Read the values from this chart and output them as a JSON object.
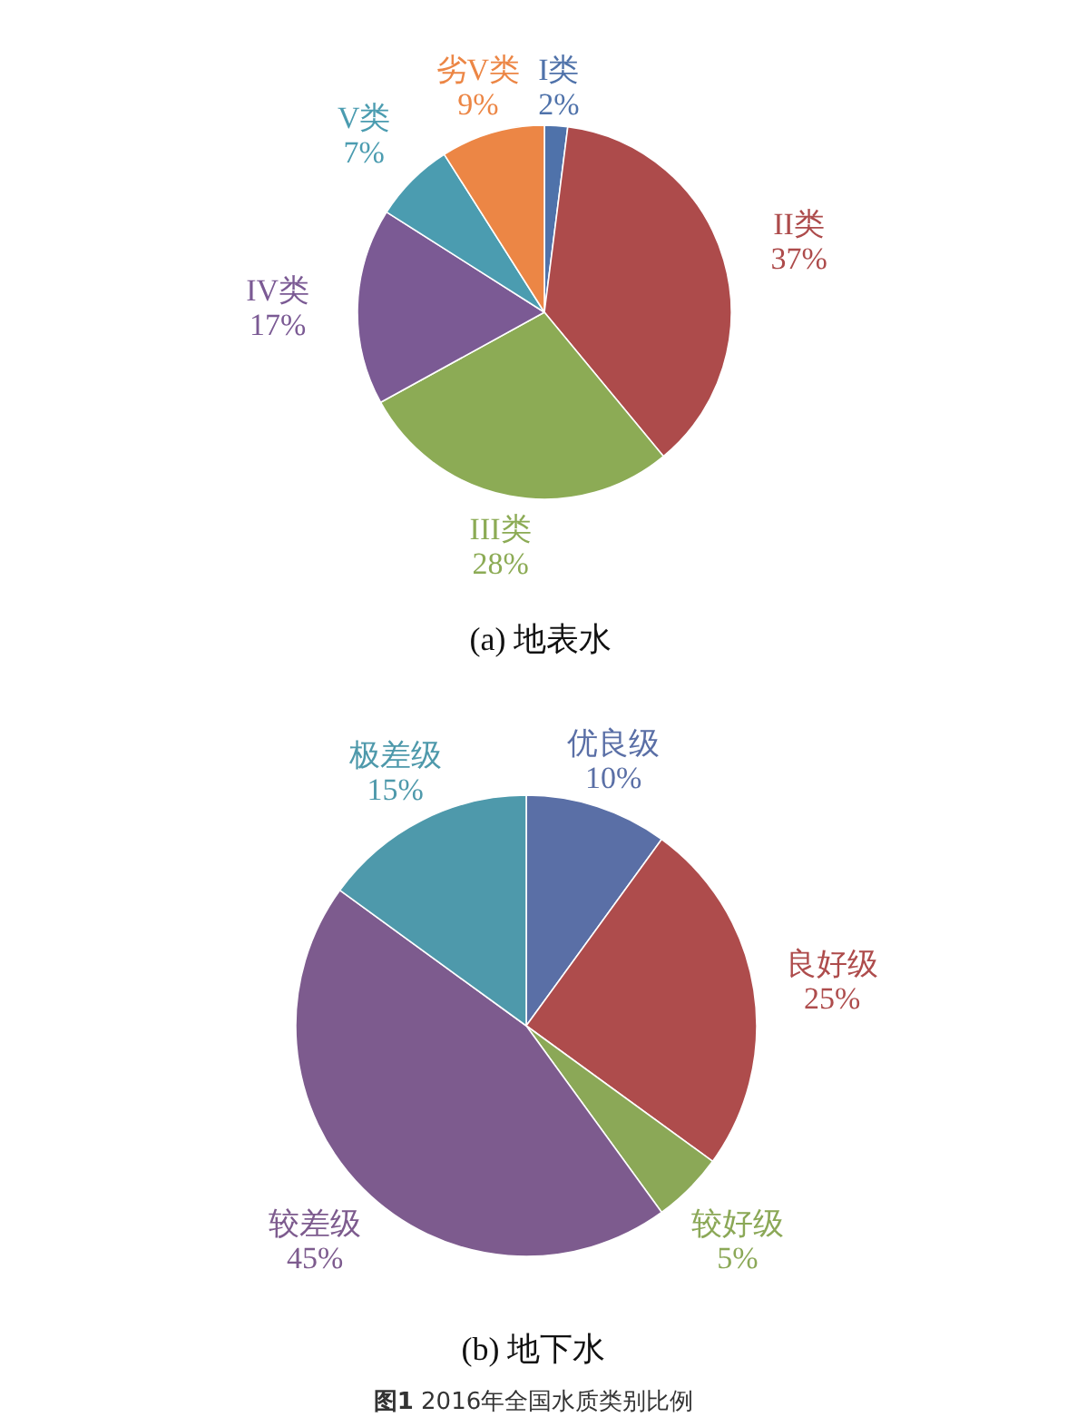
{
  "chart_data": [
    {
      "type": "pie",
      "title": "(a) 地表水",
      "categories": [
        "I类",
        "II类",
        "III类",
        "IV类",
        "V类",
        "劣V类"
      ],
      "values": [
        2,
        37,
        28,
        17,
        7,
        9
      ],
      "value_labels": [
        "2%",
        "37%",
        "28%",
        "17%",
        "7%",
        "9%"
      ],
      "colors": [
        "#4f72aa",
        "#ad4b4b",
        "#8cab55",
        "#7b5a94",
        "#4b9cb0",
        "#ec8645"
      ]
    },
    {
      "type": "pie",
      "title": "(b) 地下水",
      "categories": [
        "优良级",
        "良好级",
        "较好级",
        "较差级",
        "极差级"
      ],
      "values": [
        10,
        25,
        5,
        45,
        15
      ],
      "value_labels": [
        "10%",
        "25%",
        "5%",
        "45%",
        "15%"
      ],
      "colors": [
        "#5a6fa6",
        "#ae4c4c",
        "#8ba857",
        "#7d5b8e",
        "#4e99ab"
      ],
      "annotations": [
        "**图1** 2016年全国水质类别比例"
      ]
    }
  ]
}
